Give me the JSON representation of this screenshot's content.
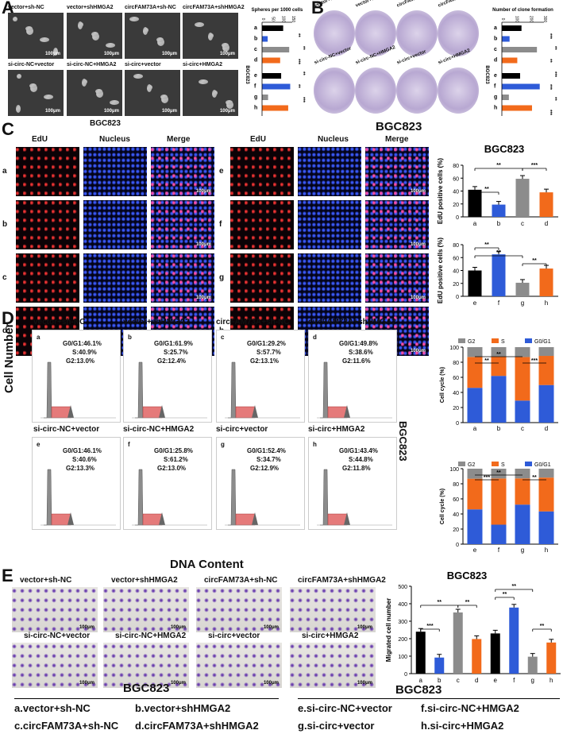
{
  "panels": {
    "A": "A",
    "B": "B",
    "C": "C",
    "D": "D",
    "E": "E"
  },
  "colors": {
    "a": "#000000",
    "b": "#2e5bd8",
    "c": "#8c8c8c",
    "d": "#f26a1b",
    "g2": "#8c8c8c",
    "s": "#f26a1b",
    "g0g1": "#2e5bd8"
  },
  "groups_row1": [
    "vector+sh-NC",
    "vector+shHMGA2",
    "circFAM73A+sh-NC",
    "circFAM73A+shHMGA2"
  ],
  "groups_row2": [
    "si-circ-NC+vector",
    "si-circ-NC+HMGA2",
    "si-circ+vector",
    "si-circ+HMGA2"
  ],
  "cell_line": "BGC823",
  "scale_bar": "100μm",
  "letters": [
    "a",
    "b",
    "c",
    "d",
    "e",
    "f",
    "g",
    "h"
  ],
  "panelA": {
    "ylabel": "Spheres per 1000 cells",
    "ticks": [
      "0",
      "50",
      "100",
      "150"
    ],
    "side_label": "BGC823",
    "values": [
      105,
      28,
      135,
      90,
      95,
      140,
      30,
      130
    ],
    "sig": [
      "**",
      "**",
      "***",
      "**",
      "**",
      "***"
    ]
  },
  "panelB": {
    "ylabel": "Number of clone formation",
    "ticks": [
      "0",
      "100",
      "200",
      "300"
    ],
    "side_label": "BGC823",
    "values": [
      140,
      55,
      250,
      110,
      130,
      270,
      50,
      215
    ],
    "sig": [
      "***",
      "**",
      "**",
      "***",
      "***",
      "**",
      "***"
    ]
  },
  "panelC": {
    "col_headers": [
      "EdU",
      "Nucleus",
      "Merge"
    ],
    "chart_title": "BGC823",
    "ylabel": "EdU positive cells (%)",
    "yticks": [
      "0",
      "20",
      "40",
      "60",
      "80"
    ],
    "top_categories": [
      "a",
      "b",
      "c",
      "d"
    ],
    "top_values": [
      42,
      19,
      59,
      38
    ],
    "bottom_categories": [
      "e",
      "f",
      "g",
      "h"
    ],
    "bottom_values": [
      40,
      65,
      21,
      43
    ],
    "sig_top": [
      "**",
      "**",
      "***"
    ],
    "sig_bottom": [
      "**",
      "**",
      "**"
    ]
  },
  "panelD": {
    "y_axis": "Cell Number",
    "x_axis": "DNA Content",
    "side_label": "BGC823",
    "cells": [
      {
        "letter": "a",
        "title": "vector+sh-NC",
        "g0": "G0/G1:46.1%",
        "s": "S:40.9%",
        "g2": "G2:13.0%"
      },
      {
        "letter": "b",
        "title": "vector+shHMGA2",
        "g0": "G0/G1:61.9%",
        "s": "S:25.7%",
        "g2": "G2:12.4%"
      },
      {
        "letter": "c",
        "title": "circFAM73A+sh-NC",
        "g0": "G0/G1:29.2%",
        "s": "S:57.7%",
        "g2": "G2:13.1%"
      },
      {
        "letter": "d",
        "title": "circFAM73A+shHMGA2",
        "g0": "G0/G1:49.8%",
        "s": "S:38.6%",
        "g2": "G2:11.6%"
      },
      {
        "letter": "e",
        "title": "si-circ-NC+vector",
        "g0": "G0/G1:46.1%",
        "s": "S:40.6%",
        "g2": "G2:13.3%"
      },
      {
        "letter": "f",
        "title": "si-circ-NC+HMGA2",
        "g0": "G0/G1:25.8%",
        "s": "S:61.2%",
        "g2": "G2:13.0%"
      },
      {
        "letter": "g",
        "title": "si-circ+vector",
        "g0": "G0/G1:52.4%",
        "s": "S:34.7%",
        "g2": "G2:12.9%"
      },
      {
        "letter": "h",
        "title": "si-circ+HMGA2",
        "g0": "G0/G1:43.4%",
        "s": "S:44.8%",
        "g2": "G2:11.8%"
      }
    ],
    "legend": [
      "G2",
      "S",
      "G0/G1"
    ],
    "ylabel": "Cell cycle (%)",
    "yticks": [
      "0",
      "20",
      "40",
      "60",
      "80",
      "100"
    ],
    "top_categories": [
      "a",
      "b",
      "c",
      "d"
    ],
    "bottom_categories": [
      "e",
      "f",
      "g",
      "h"
    ],
    "sig_top": [
      "**",
      "**",
      "***"
    ],
    "sig_bottom": [
      "***",
      "**",
      "**"
    ]
  },
  "panelE": {
    "chart_title": "BGC823",
    "ylabel": "Migrated cell number",
    "yticks": [
      "0",
      "100",
      "200",
      "300",
      "400",
      "500"
    ],
    "categories": [
      "a",
      "b",
      "c",
      "d",
      "e",
      "f",
      "g",
      "h"
    ],
    "values": [
      240,
      92,
      350,
      198,
      230,
      378,
      97,
      178
    ],
    "sig": [
      "***",
      "**",
      "**",
      "**",
      "**",
      "**",
      "**"
    ],
    "caption_left": "BGC823",
    "caption_right": "BGC823"
  },
  "footer": {
    "a": "a.vector+sh-NC",
    "b": "b.vector+shHMGA2",
    "c": "c.circFAM73A+sh-NC",
    "d": "d.circFAM73A+shHMGA2",
    "e": "e.si-circ-NC+vector",
    "f": "f.si-circ-NC+HMGA2",
    "g": "g.si-circ+vector",
    "h": "h.si-circ+HMGA2"
  },
  "chart_data": [
    {
      "type": "bar",
      "ylabel": "Spheres per 1000 cells",
      "categories": [
        "a",
        "b",
        "c",
        "d",
        "e",
        "f",
        "g",
        "h"
      ],
      "values": [
        105,
        28,
        135,
        90,
        95,
        140,
        30,
        130
      ],
      "ylim": [
        0,
        150
      ]
    },
    {
      "type": "bar",
      "ylabel": "Number of clone formation",
      "categories": [
        "a",
        "b",
        "c",
        "d",
        "e",
        "f",
        "g",
        "h"
      ],
      "values": [
        140,
        55,
        250,
        110,
        130,
        270,
        50,
        215
      ],
      "ylim": [
        0,
        300
      ]
    },
    {
      "type": "bar",
      "title": "BGC823",
      "ylabel": "EdU positive cells (%)",
      "categories": [
        "a",
        "b",
        "c",
        "d"
      ],
      "values": [
        42,
        19,
        59,
        38
      ],
      "ylim": [
        0,
        80
      ]
    },
    {
      "type": "bar",
      "ylabel": "EdU positive cells (%)",
      "categories": [
        "e",
        "f",
        "g",
        "h"
      ],
      "values": [
        40,
        65,
        21,
        43
      ],
      "ylim": [
        0,
        80
      ]
    },
    {
      "type": "bar",
      "ylabel": "Cell cycle (%)",
      "categories": [
        "a",
        "b",
        "c",
        "d"
      ],
      "series": [
        {
          "name": "G0/G1",
          "values": [
            46.1,
            61.9,
            29.2,
            49.8
          ]
        },
        {
          "name": "S",
          "values": [
            40.9,
            25.7,
            57.7,
            38.6
          ]
        },
        {
          "name": "G2",
          "values": [
            13.0,
            12.4,
            13.1,
            11.6
          ]
        }
      ],
      "ylim": [
        0,
        100
      ]
    },
    {
      "type": "bar",
      "ylabel": "Cell cycle (%)",
      "categories": [
        "e",
        "f",
        "g",
        "h"
      ],
      "series": [
        {
          "name": "G0/G1",
          "values": [
            46.1,
            25.8,
            52.4,
            43.4
          ]
        },
        {
          "name": "S",
          "values": [
            40.6,
            61.2,
            34.7,
            44.8
          ]
        },
        {
          "name": "G2",
          "values": [
            13.3,
            13.0,
            12.9,
            11.8
          ]
        }
      ],
      "ylim": [
        0,
        100
      ]
    },
    {
      "type": "bar",
      "title": "BGC823",
      "ylabel": "Migrated cell number",
      "categories": [
        "a",
        "b",
        "c",
        "d",
        "e",
        "f",
        "g",
        "h"
      ],
      "values": [
        240,
        92,
        350,
        198,
        230,
        378,
        97,
        178
      ],
      "ylim": [
        0,
        500
      ]
    }
  ]
}
